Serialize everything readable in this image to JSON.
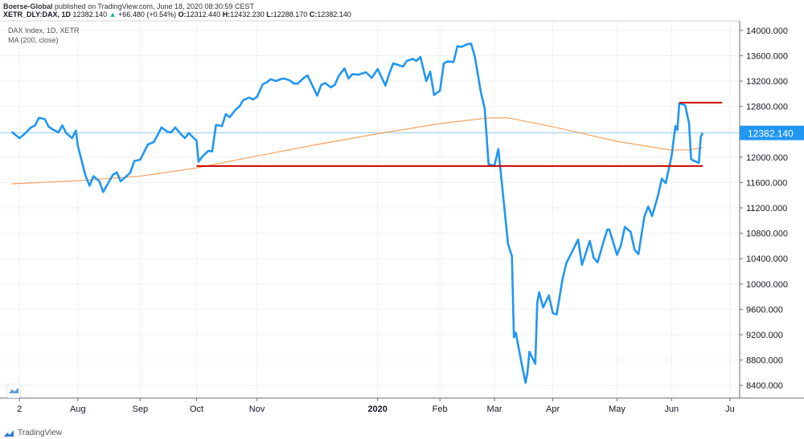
{
  "header": {
    "publisher": "Boerse-Global",
    "published_text": "published on TradingView.com, June 18, 2020 08:30:59 CEST",
    "symbol": "XETR_DLY:DAX, 1D",
    "last": "12382.140",
    "change": "+66.480 (+0.54%)",
    "o_label": "O:",
    "o_value": "12312.440",
    "h_label": "H:",
    "h_value": "12432.230",
    "l_label": "L:",
    "l_value": "12288.170",
    "c_label": "C:",
    "c_value": "12382.140"
  },
  "legend": {
    "series_name": "DAX Index, 1D, XETR",
    "ma_name": "MA (200, close)"
  },
  "footer": {
    "brand": "TradingView"
  },
  "colors": {
    "price": "#2196f3",
    "ma": "#f4a460",
    "support_line": "#cc0000",
    "last_price_line": "#9ccff5",
    "last_price_label_bg": "#2196f3",
    "grid": "#eef0f3"
  },
  "chart_data": {
    "type": "line",
    "ylim": [
      8200,
      14150
    ],
    "yticks": [
      "14000.000",
      "13600.000",
      "13200.000",
      "12800.000",
      "12400.000",
      "12000.000",
      "11600.000",
      "11200.000",
      "10800.000",
      "10400.000",
      "10000.000",
      "9600.000",
      "9200.000",
      "8800.000",
      "8400.000"
    ],
    "ytick_values": [
      14000,
      13600,
      13200,
      12800,
      12400,
      12000,
      11600,
      11200,
      10800,
      10400,
      10000,
      9600,
      9200,
      8800,
      8400
    ],
    "xticks": [
      {
        "label": "2",
        "date": "2019-07-02"
      },
      {
        "label": "Aug",
        "date": "2019-08-01"
      },
      {
        "label": "Sep",
        "date": "2019-09-02"
      },
      {
        "label": "Oct",
        "date": "2019-10-01"
      },
      {
        "label": "Nov",
        "date": "2019-11-01"
      },
      {
        "label": "2020",
        "date": "2020-01-02",
        "bold": true
      },
      {
        "label": "Feb",
        "date": "2020-02-03"
      },
      {
        "label": "Mar",
        "date": "2020-03-02"
      },
      {
        "label": "Apr",
        "date": "2020-04-01"
      },
      {
        "label": "May",
        "date": "2020-05-04"
      },
      {
        "label": "Jun",
        "date": "2020-06-01"
      },
      {
        "label": "Ju",
        "date": "2020-07-01"
      }
    ],
    "last_price_label": "12382.140",
    "last_price": 12382.14,
    "series": [
      {
        "name": "DAX Index, 1D, XETR",
        "points": [
          [
            "2019-06-28",
            12400
          ],
          [
            "2019-07-02",
            12300
          ],
          [
            "2019-07-04",
            12350
          ],
          [
            "2019-07-08",
            12470
          ],
          [
            "2019-07-10",
            12500
          ],
          [
            "2019-07-12",
            12620
          ],
          [
            "2019-07-15",
            12600
          ],
          [
            "2019-07-17",
            12480
          ],
          [
            "2019-07-19",
            12440
          ],
          [
            "2019-07-22",
            12390
          ],
          [
            "2019-07-24",
            12500
          ],
          [
            "2019-07-26",
            12380
          ],
          [
            "2019-07-29",
            12300
          ],
          [
            "2019-07-31",
            12420
          ],
          [
            "2019-08-01",
            12180
          ],
          [
            "2019-08-05",
            11700
          ],
          [
            "2019-08-07",
            11550
          ],
          [
            "2019-08-09",
            11700
          ],
          [
            "2019-08-12",
            11620
          ],
          [
            "2019-08-14",
            11450
          ],
          [
            "2019-08-16",
            11560
          ],
          [
            "2019-08-19",
            11720
          ],
          [
            "2019-08-21",
            11760
          ],
          [
            "2019-08-23",
            11620
          ],
          [
            "2019-08-26",
            11700
          ],
          [
            "2019-08-28",
            11760
          ],
          [
            "2019-08-30",
            11940
          ],
          [
            "2019-09-02",
            11960
          ],
          [
            "2019-09-04",
            12080
          ],
          [
            "2019-09-06",
            12200
          ],
          [
            "2019-09-09",
            12240
          ],
          [
            "2019-09-11",
            12350
          ],
          [
            "2019-09-13",
            12470
          ],
          [
            "2019-09-16",
            12400
          ],
          [
            "2019-09-18",
            12390
          ],
          [
            "2019-09-20",
            12470
          ],
          [
            "2019-09-23",
            12360
          ],
          [
            "2019-09-25",
            12300
          ],
          [
            "2019-09-27",
            12380
          ],
          [
            "2019-10-01",
            12260
          ],
          [
            "2019-10-02",
            11930
          ],
          [
            "2019-10-04",
            12010
          ],
          [
            "2019-10-07",
            12100
          ],
          [
            "2019-10-09",
            12090
          ],
          [
            "2019-10-11",
            12510
          ],
          [
            "2019-10-14",
            12490
          ],
          [
            "2019-10-16",
            12680
          ],
          [
            "2019-10-18",
            12630
          ],
          [
            "2019-10-21",
            12750
          ],
          [
            "2019-10-23",
            12800
          ],
          [
            "2019-10-25",
            12900
          ],
          [
            "2019-10-28",
            12940
          ],
          [
            "2019-10-30",
            12910
          ],
          [
            "2019-11-01",
            12950
          ],
          [
            "2019-11-04",
            13150
          ],
          [
            "2019-11-06",
            13180
          ],
          [
            "2019-11-08",
            13230
          ],
          [
            "2019-11-11",
            13200
          ],
          [
            "2019-11-13",
            13230
          ],
          [
            "2019-11-15",
            13240
          ],
          [
            "2019-11-18",
            13210
          ],
          [
            "2019-11-20",
            13160
          ],
          [
            "2019-11-22",
            13160
          ],
          [
            "2019-11-25",
            13250
          ],
          [
            "2019-11-27",
            13290
          ],
          [
            "2019-12-02",
            12970
          ],
          [
            "2019-12-04",
            13140
          ],
          [
            "2019-12-06",
            13170
          ],
          [
            "2019-12-09",
            13100
          ],
          [
            "2019-12-11",
            13140
          ],
          [
            "2019-12-13",
            13280
          ],
          [
            "2019-12-16",
            13400
          ],
          [
            "2019-12-18",
            13240
          ],
          [
            "2019-12-20",
            13310
          ],
          [
            "2019-12-23",
            13300
          ],
          [
            "2019-12-27",
            13340
          ],
          [
            "2019-12-30",
            13250
          ],
          [
            "2020-01-02",
            13390
          ],
          [
            "2020-01-06",
            13130
          ],
          [
            "2020-01-08",
            13320
          ],
          [
            "2020-01-10",
            13480
          ],
          [
            "2020-01-13",
            13450
          ],
          [
            "2020-01-15",
            13430
          ],
          [
            "2020-01-17",
            13520
          ],
          [
            "2020-01-20",
            13550
          ],
          [
            "2020-01-22",
            13520
          ],
          [
            "2020-01-24",
            13580
          ],
          [
            "2020-01-27",
            13200
          ],
          [
            "2020-01-29",
            13350
          ],
          [
            "2020-01-31",
            12980
          ],
          [
            "2020-02-03",
            13050
          ],
          [
            "2020-02-05",
            13480
          ],
          [
            "2020-02-07",
            13510
          ],
          [
            "2020-02-10",
            13500
          ],
          [
            "2020-02-12",
            13750
          ],
          [
            "2020-02-14",
            13740
          ],
          [
            "2020-02-17",
            13780
          ],
          [
            "2020-02-19",
            13790
          ],
          [
            "2020-02-21",
            13580
          ],
          [
            "2020-02-24",
            13030
          ],
          [
            "2020-02-26",
            12770
          ],
          [
            "2020-02-28",
            11890
          ],
          [
            "2020-03-02",
            11860
          ],
          [
            "2020-03-04",
            12130
          ],
          [
            "2020-03-06",
            11540
          ],
          [
            "2020-03-09",
            10630
          ],
          [
            "2020-03-11",
            10440
          ],
          [
            "2020-03-12",
            9160
          ],
          [
            "2020-03-13",
            9230
          ],
          [
            "2020-03-16",
            8740
          ],
          [
            "2020-03-18",
            8440
          ],
          [
            "2020-03-19",
            8610
          ],
          [
            "2020-03-20",
            8930
          ],
          [
            "2020-03-23",
            8740
          ],
          [
            "2020-03-24",
            9700
          ],
          [
            "2020-03-25",
            9870
          ],
          [
            "2020-03-27",
            9630
          ],
          [
            "2020-03-30",
            9820
          ],
          [
            "2020-04-01",
            9540
          ],
          [
            "2020-04-03",
            9520
          ],
          [
            "2020-04-06",
            10080
          ],
          [
            "2020-04-08",
            10330
          ],
          [
            "2020-04-14",
            10700
          ],
          [
            "2020-04-16",
            10300
          ],
          [
            "2020-04-20",
            10680
          ],
          [
            "2020-04-22",
            10410
          ],
          [
            "2020-04-24",
            10340
          ],
          [
            "2020-04-27",
            10660
          ],
          [
            "2020-04-29",
            10860
          ],
          [
            "2020-04-30",
            10860
          ],
          [
            "2020-05-04",
            10460
          ],
          [
            "2020-05-06",
            10610
          ],
          [
            "2020-05-08",
            10900
          ],
          [
            "2020-05-11",
            10820
          ],
          [
            "2020-05-13",
            10540
          ],
          [
            "2020-05-15",
            10470
          ],
          [
            "2020-05-18",
            11060
          ],
          [
            "2020-05-20",
            11220
          ],
          [
            "2020-05-22",
            11070
          ],
          [
            "2020-05-25",
            11390
          ],
          [
            "2020-05-27",
            11660
          ],
          [
            "2020-05-29",
            11590
          ],
          [
            "2020-06-01",
            12020
          ],
          [
            "2020-06-03",
            12490
          ],
          [
            "2020-06-04",
            12430
          ],
          [
            "2020-06-05",
            12850
          ],
          [
            "2020-06-08",
            12820
          ],
          [
            "2020-06-10",
            12530
          ],
          [
            "2020-06-11",
            11970
          ],
          [
            "2020-06-12",
            11950
          ],
          [
            "2020-06-15",
            11910
          ],
          [
            "2020-06-16",
            12320
          ],
          [
            "2020-06-17",
            12382
          ]
        ]
      },
      {
        "name": "MA (200, close)",
        "points": [
          [
            "2019-06-28",
            11580
          ],
          [
            "2019-08-01",
            11630
          ],
          [
            "2019-09-02",
            11700
          ],
          [
            "2019-10-01",
            11830
          ],
          [
            "2019-11-01",
            12020
          ],
          [
            "2019-12-02",
            12200
          ],
          [
            "2020-01-02",
            12370
          ],
          [
            "2020-02-03",
            12530
          ],
          [
            "2020-02-28",
            12620
          ],
          [
            "2020-03-09",
            12620
          ],
          [
            "2020-04-01",
            12480
          ],
          [
            "2020-05-04",
            12250
          ],
          [
            "2020-06-01",
            12110
          ],
          [
            "2020-06-10",
            12115
          ],
          [
            "2020-06-17",
            12150
          ]
        ]
      }
    ],
    "horizontal_lines": [
      {
        "y": 11860,
        "from": "2019-10-01",
        "to": "2020-06-17"
      },
      {
        "y": 12860,
        "from": "2020-06-05",
        "to": "2020-06-27"
      }
    ]
  }
}
